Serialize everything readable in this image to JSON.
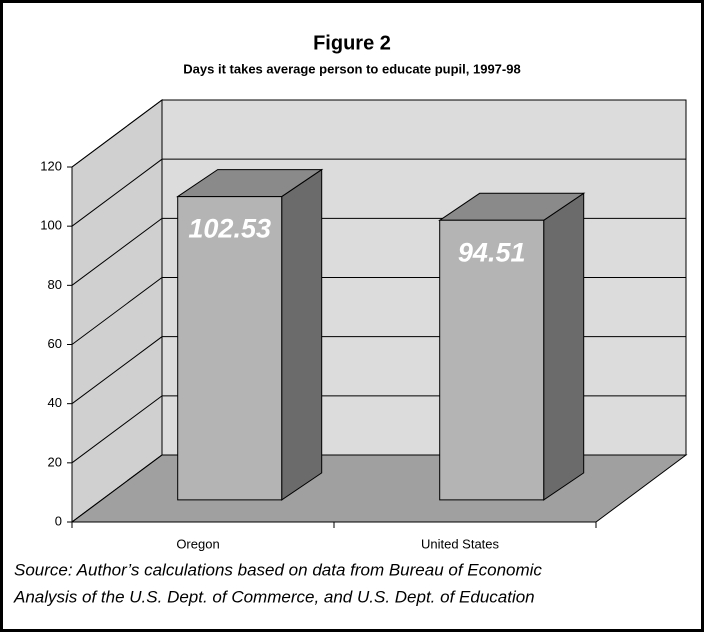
{
  "chart_data": {
    "type": "bar3d",
    "title": "Figure 2",
    "subtitle": "Days it takes average person to educate pupil, 1997-98",
    "categories": [
      "Oregon",
      "United States"
    ],
    "values": [
      102.53,
      94.51
    ],
    "ylim": [
      0,
      120
    ],
    "yticks": [
      0,
      20,
      40,
      60,
      80,
      100,
      120
    ],
    "grid": true,
    "color": "#b4b4b4",
    "source": [
      "Source: Author’s calculations based on data from Bureau of Economic",
      "Analysis of the U.S. Dept. of Commerce, and U.S. Dept. of Education"
    ]
  }
}
